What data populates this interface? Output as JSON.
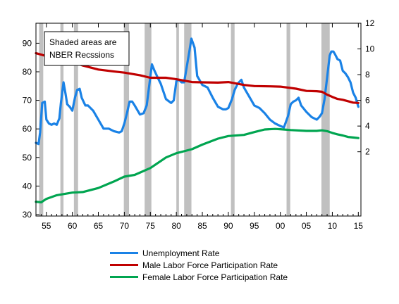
{
  "chart_data": {
    "type": "line",
    "annotation": [
      "Shaded areas are",
      "NBER Recssions"
    ],
    "x_range": [
      1953,
      2015.5
    ],
    "x_ticks": [
      "55",
      "60",
      "65",
      "70",
      "75",
      "80",
      "85",
      "90",
      "95",
      "00",
      "05",
      "10",
      "15"
    ],
    "x_tick_years": [
      1955,
      1960,
      1965,
      1970,
      1975,
      1980,
      1985,
      1990,
      1995,
      2000,
      2005,
      2010,
      2015
    ],
    "left_axis": {
      "range": [
        29.5,
        97
      ],
      "ticks": [
        30,
        40,
        50,
        60,
        70,
        80,
        90
      ]
    },
    "right_axis": {
      "range": [
        -3,
        12
      ],
      "ticks": [
        2,
        4,
        6,
        8,
        10,
        12
      ]
    },
    "recessions": [
      [
        1953.6,
        1954.4
      ],
      [
        1957.7,
        1958.3
      ],
      [
        1960.3,
        1961.1
      ],
      [
        1969.9,
        1970.9
      ],
      [
        1973.9,
        1975.2
      ],
      [
        1980.0,
        1980.5
      ],
      [
        1981.5,
        1982.9
      ],
      [
        1990.5,
        1991.2
      ],
      [
        2001.2,
        2001.9
      ],
      [
        2007.9,
        2009.5
      ]
    ],
    "series": [
      {
        "name": "Unemployment Rate",
        "axis": "right",
        "color": "#1a82e6",
        "x": [
          1953.0,
          1953.5,
          1953.8,
          1954.2,
          1954.7,
          1955.0,
          1955.5,
          1956.0,
          1956.5,
          1957.0,
          1957.5,
          1957.8,
          1958.3,
          1958.7,
          1959.0,
          1959.5,
          1960.0,
          1960.5,
          1960.9,
          1961.4,
          1961.8,
          1962.5,
          1963.0,
          1964.0,
          1965.0,
          1966.0,
          1967.0,
          1968.0,
          1969.0,
          1969.5,
          1970.0,
          1970.5,
          1971.0,
          1971.5,
          1972.0,
          1973.0,
          1973.7,
          1974.3,
          1974.8,
          1975.3,
          1975.8,
          1976.5,
          1977.0,
          1978.0,
          1979.0,
          1979.5,
          1980.0,
          1980.5,
          1981.0,
          1981.5,
          1982.0,
          1982.5,
          1982.9,
          1983.5,
          1984.0,
          1985.0,
          1986.0,
          1987.0,
          1988.0,
          1989.0,
          1989.5,
          1990.0,
          1990.7,
          1991.2,
          1991.8,
          1992.5,
          1993.0,
          1994.0,
          1995.0,
          1996.0,
          1997.0,
          1998.0,
          1999.0,
          2000.0,
          2000.7,
          2001.5,
          2002.0,
          2002.5,
          2003.0,
          2003.5,
          2004.0,
          2005.0,
          2006.0,
          2007.0,
          2007.5,
          2008.0,
          2008.5,
          2009.0,
          2009.5,
          2009.8,
          2010.2,
          2010.5,
          2011.0,
          2011.5,
          2012.0,
          2012.5,
          2013.0,
          2013.5,
          2014.0,
          2014.5,
          2015.0
        ],
        "values": [
          2.7,
          2.6,
          3.5,
          5.8,
          5.9,
          4.5,
          4.2,
          4.1,
          4.2,
          4.1,
          4.6,
          5.8,
          7.4,
          6.5,
          5.7,
          5.5,
          5.2,
          6.2,
          6.8,
          6.9,
          6.2,
          5.6,
          5.6,
          5.2,
          4.5,
          3.8,
          3.8,
          3.6,
          3.5,
          3.6,
          4.2,
          5.0,
          5.9,
          5.9,
          5.6,
          4.9,
          5.0,
          5.6,
          7.2,
          8.8,
          8.3,
          7.7,
          7.3,
          6.1,
          5.8,
          6.0,
          7.5,
          7.6,
          7.4,
          7.4,
          8.6,
          9.8,
          10.8,
          10.1,
          7.9,
          7.2,
          7.0,
          6.2,
          5.5,
          5.3,
          5.3,
          5.4,
          6.1,
          6.8,
          7.3,
          7.6,
          7.0,
          6.3,
          5.6,
          5.4,
          5.0,
          4.5,
          4.2,
          4.0,
          3.9,
          4.8,
          5.7,
          5.9,
          6.0,
          6.2,
          5.6,
          5.1,
          4.7,
          4.5,
          4.7,
          5.0,
          6.1,
          7.8,
          9.5,
          9.8,
          9.8,
          9.6,
          9.2,
          9.1,
          8.3,
          8.1,
          7.8,
          7.4,
          6.6,
          6.2,
          5.5
        ]
      },
      {
        "name": "Male Labor Force Participation Rate",
        "axis": "left",
        "color": "#c00000",
        "x": [
          1953.0,
          1955.0,
          1957.0,
          1960.0,
          1962.0,
          1965.0,
          1968.0,
          1970.0,
          1973.0,
          1975.0,
          1978.0,
          1980.0,
          1983.0,
          1985.0,
          1988.0,
          1990.0,
          1993.0,
          1995.0,
          1998.0,
          2000.0,
          2003.0,
          2005.0,
          2007.0,
          2008.0,
          2009.0,
          2010.0,
          2011.0,
          2012.0,
          2013.0,
          2014.0,
          2015.0
        ],
        "values": [
          86.5,
          85.5,
          84.8,
          83.5,
          82.2,
          80.8,
          80.1,
          79.7,
          78.8,
          77.9,
          77.9,
          77.4,
          76.4,
          76.3,
          76.2,
          76.4,
          75.4,
          75.0,
          74.9,
          74.8,
          74.1,
          73.3,
          73.2,
          73.0,
          72.0,
          71.2,
          70.5,
          70.2,
          69.7,
          69.2,
          69.1
        ]
      },
      {
        "name": "Female Labor Force Participation Rate",
        "axis": "left",
        "color": "#00a550",
        "x": [
          1953.0,
          1954.0,
          1955.0,
          1957.0,
          1960.0,
          1962.0,
          1965.0,
          1968.0,
          1970.0,
          1972.0,
          1975.0,
          1978.0,
          1980.0,
          1983.0,
          1985.0,
          1988.0,
          1990.0,
          1993.0,
          1995.0,
          1997.0,
          1999.0,
          2000.0,
          2002.0,
          2005.0,
          2007.0,
          2008.0,
          2009.0,
          2010.0,
          2011.0,
          2012.0,
          2013.0,
          2014.0,
          2015.0
        ],
        "values": [
          34.5,
          34.3,
          35.5,
          36.8,
          37.7,
          37.9,
          39.3,
          41.6,
          43.3,
          43.9,
          46.3,
          50.0,
          51.5,
          52.9,
          54.5,
          56.6,
          57.5,
          57.9,
          58.9,
          59.8,
          60.0,
          59.9,
          59.6,
          59.3,
          59.3,
          59.5,
          59.2,
          58.6,
          58.1,
          57.7,
          57.2,
          57.0,
          56.8
        ]
      }
    ]
  }
}
